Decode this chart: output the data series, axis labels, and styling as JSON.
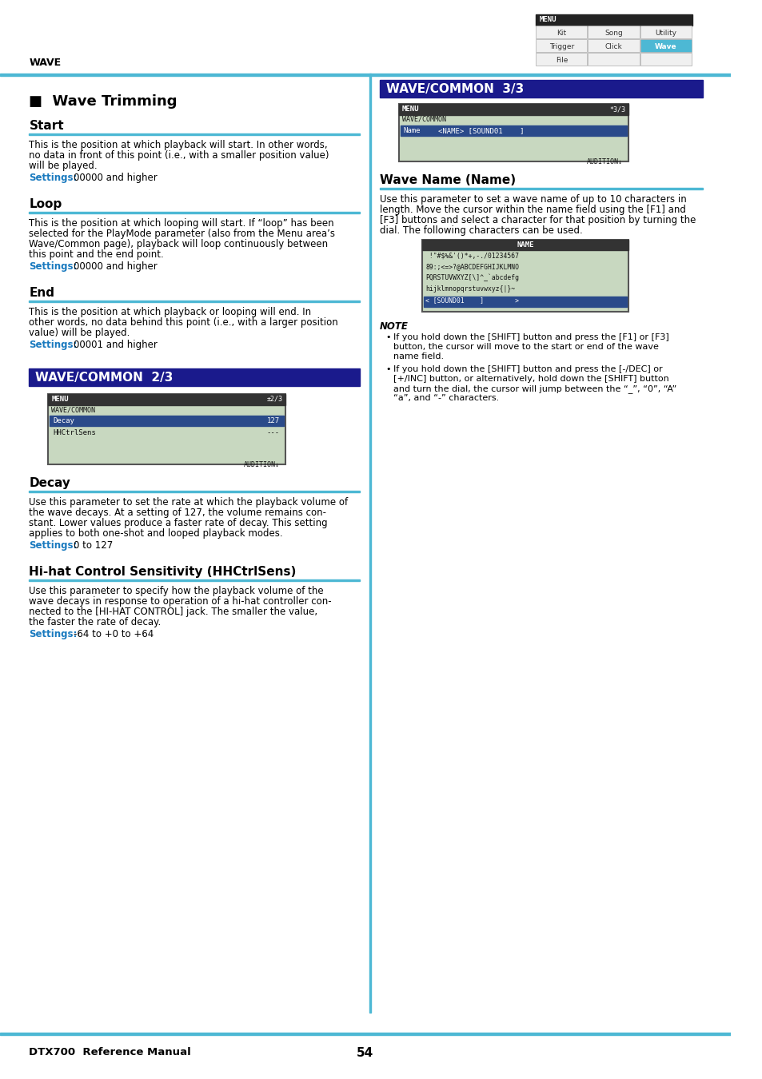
{
  "page_bg": "#ffffff",
  "top_label": "WAVE",
  "page_number": "54",
  "footer_text": "DTX700  Reference Manual",
  "menu_box": {
    "rows": [
      [
        "Kit",
        "Song",
        "Utility"
      ],
      [
        "Trigger",
        "Click",
        "Wave"
      ],
      [
        "File",
        "",
        ""
      ]
    ],
    "highlight_cell": [
      1,
      2
    ],
    "highlight_color": "#4db8d4"
  },
  "left_col": {
    "section_title": "■  Wave Trimming",
    "subsections": [
      {
        "heading": "Start",
        "body": "This is the position at which playback will start. In other words,\nno data in front of this point (i.e., with a smaller position value)\nwill be played.",
        "settings": "00000 and higher"
      },
      {
        "heading": "Loop",
        "body": "This is the position at which looping will start. If “loop” has been\nselected for the PlayMode parameter (also from the Menu area’s\nWave/Common page), playback will loop continuously between\nthis point and the end point.",
        "settings": "00000 and higher"
      },
      {
        "heading": "End",
        "body": "This is the position at which playback or looping will end. In\nother words, no data behind this point (i.e., with a larger position\nvalue) will be played.",
        "settings": "00001 and higher"
      }
    ]
  },
  "left_col2": {
    "banner_text": "WAVE/COMMON  2/3",
    "banner_bg": "#1a1a8c",
    "banner_fg": "#ffffff",
    "screen": {
      "title": "MENU",
      "subtitle": "WAVE/COMMON",
      "page_indicator": "±2/3",
      "rows": [
        {
          "label": "Decay",
          "value": "127",
          "highlight": true
        },
        {
          "label": "HHCtrlSens",
          "value": "---",
          "highlight": false
        }
      ],
      "footer": "AUDITION↓"
    },
    "subsections": [
      {
        "heading": "Decay",
        "body": "Use this parameter to set the rate at which the playback volume of\nthe wave decays. At a setting of 127, the volume remains con-\nstant. Lower values produce a faster rate of decay. This setting\napplies to both one-shot and looped playback modes.",
        "settings": "0 to 127"
      },
      {
        "heading": "Hi-hat Control Sensitivity (HHCtrlSens)",
        "body": "Use this parameter to specify how the playback volume of the\nwave decays in response to operation of a hi-hat controller con-\nnected to the [HI-HAT CONTROL] jack. The smaller the value,\nthe faster the rate of decay.",
        "settings": "-64 to +0 to +64"
      }
    ]
  },
  "right_col": {
    "banner_text": "WAVE/COMMON  3/3",
    "banner_bg": "#1a1a8c",
    "banner_fg": "#ffffff",
    "screen": {
      "title": "MENU",
      "subtitle": "WAVE/COMMON",
      "page_indicator": "*3/3",
      "rows": [
        {
          "label": "Name",
          "value": "<NAME> [SOUND01    ]",
          "highlight": true
        }
      ],
      "footer": "AUDITION↓"
    },
    "subsections": [
      {
        "heading": "Wave Name (Name)",
        "body": "Use this parameter to set a wave name of up to 10 characters in\nlength. Move the cursor within the name field using the [F1] and\n[F3] buttons and select a character for that position by turning the\ndial. The following characters can be used.",
        "char_table_label": "NAME",
        "char_table_lines": [
          " !\"#$%&'()*+,-./01234567",
          "89:;<=>?@ABCDEFGHIJKLMNO",
          "PQRSTUVWXYZ[\\]^_`abcdefg",
          "hijklmnopqrstuvwxyz{|}~",
          "< [SOUND01    ]        >"
        ],
        "note_title": "NOTE",
        "notes": [
          "If you hold down the [SHIFT] button and press the [F1] or [F3]\nbutton, the cursor will move to the start or end of the wave\nname field.",
          "If you hold down the [SHIFT] button and press the [-/DEC] or\n[+/INC] button, or alternatively, hold down the [SHIFT] button\nand turn the dial, the cursor will jump between the “_”, “0”, “A”\n“a”, and “-” characters."
        ],
        "settings": ""
      }
    ]
  },
  "colors": {
    "blue_line": "#4db8d4",
    "settings_label_color": "#1a7abf",
    "screen_bg": "#c8d8c0",
    "screen_title_bg": "#333333",
    "screen_highlight": "#2a4a8a"
  }
}
